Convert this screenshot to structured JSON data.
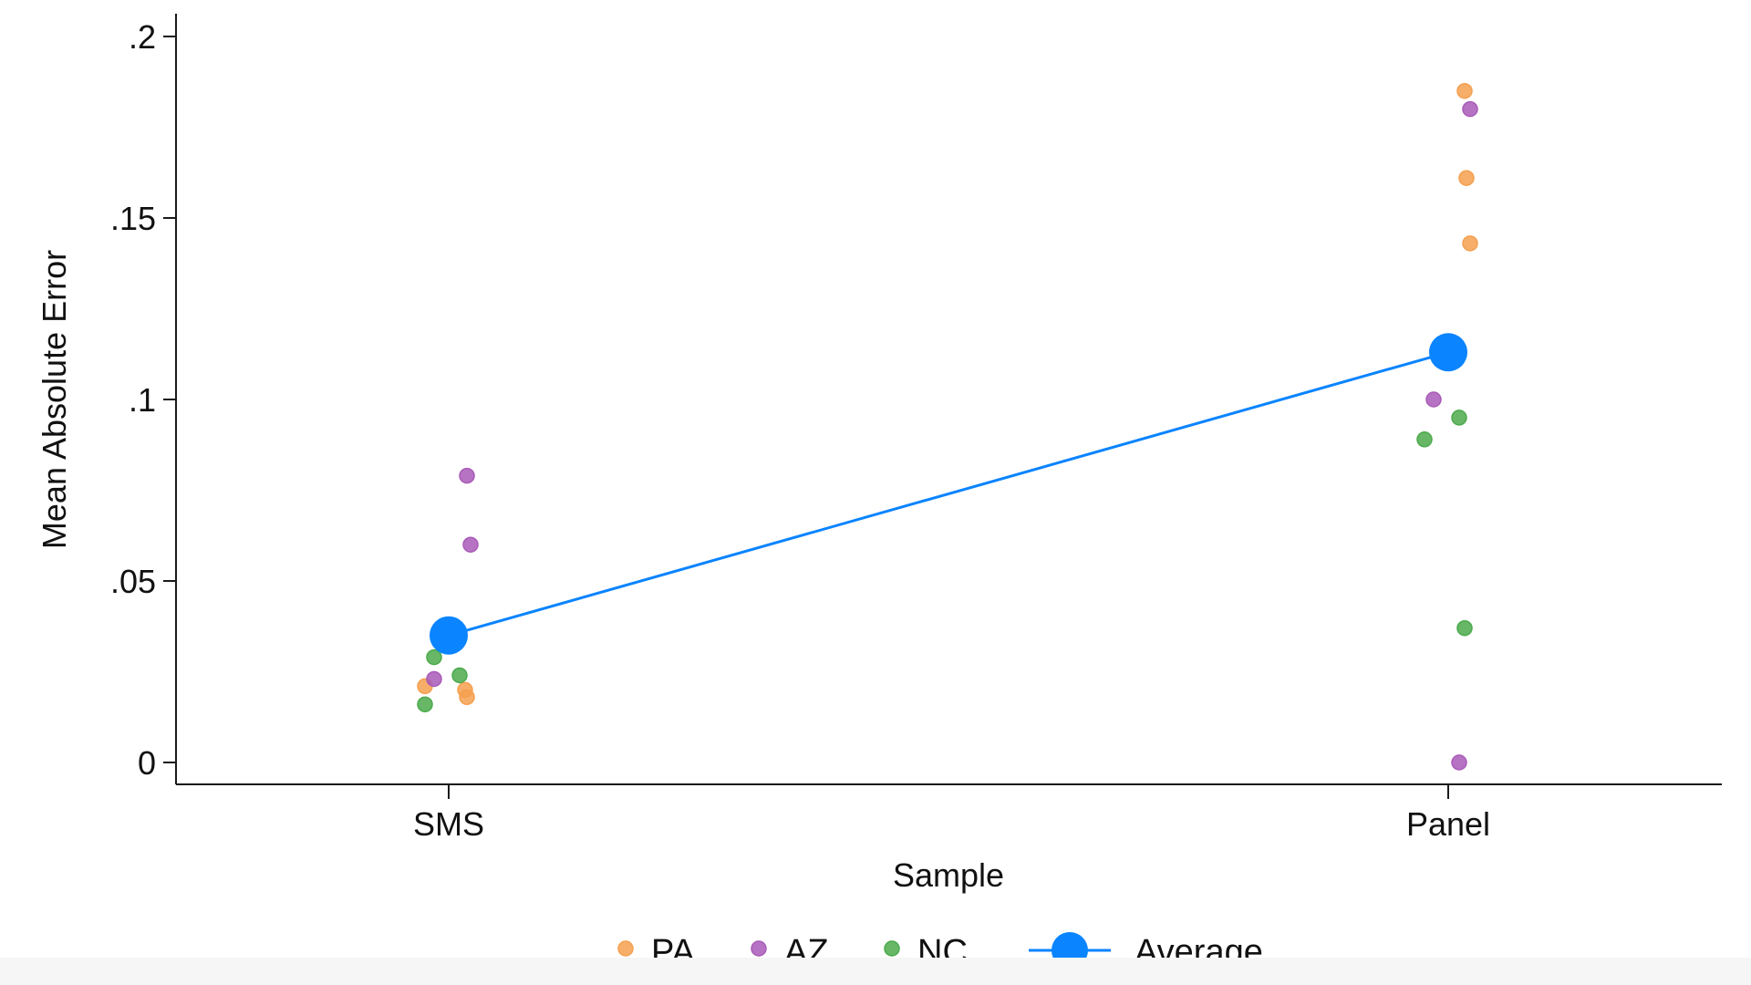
{
  "chart_data": {
    "type": "scatter",
    "title": "",
    "xlabel": "Sample",
    "ylabel": "Mean Absolute Error",
    "categories": [
      "SMS",
      "Panel"
    ],
    "ylim": [
      0,
      0.2
    ],
    "yticks": [
      {
        "value": 0,
        "label": "0"
      },
      {
        "value": 0.05,
        "label": ".05"
      },
      {
        "value": 0.1,
        "label": ".1"
      },
      {
        "value": 0.15,
        "label": ".15"
      },
      {
        "value": 0.2,
        "label": ".2"
      }
    ],
    "grid": false,
    "legend_position": "bottom",
    "series": [
      {
        "name": "PA",
        "color": "#f5a04f",
        "points": [
          {
            "category": "SMS",
            "y": 0.021
          },
          {
            "category": "SMS",
            "y": 0.02
          },
          {
            "category": "SMS",
            "y": 0.018
          },
          {
            "category": "Panel",
            "y": 0.185
          },
          {
            "category": "Panel",
            "y": 0.161
          },
          {
            "category": "Panel",
            "y": 0.143
          }
        ]
      },
      {
        "name": "AZ",
        "color": "#a95bb8",
        "points": [
          {
            "category": "SMS",
            "y": 0.079
          },
          {
            "category": "SMS",
            "y": 0.06
          },
          {
            "category": "SMS",
            "y": 0.023
          },
          {
            "category": "Panel",
            "y": 0.18
          },
          {
            "category": "Panel",
            "y": 0.1
          },
          {
            "category": "Panel",
            "y": 0.0
          }
        ]
      },
      {
        "name": "NC",
        "color": "#4caa4c",
        "points": [
          {
            "category": "SMS",
            "y": 0.029
          },
          {
            "category": "SMS",
            "y": 0.024
          },
          {
            "category": "SMS",
            "y": 0.016
          },
          {
            "category": "Panel",
            "y": 0.095
          },
          {
            "category": "Panel",
            "y": 0.089
          },
          {
            "category": "Panel",
            "y": 0.037
          }
        ]
      },
      {
        "name": "Average",
        "color": "#0a84ff",
        "line": true,
        "points": [
          {
            "category": "SMS",
            "y": 0.035
          },
          {
            "category": "Panel",
            "y": 0.113
          }
        ]
      }
    ]
  }
}
